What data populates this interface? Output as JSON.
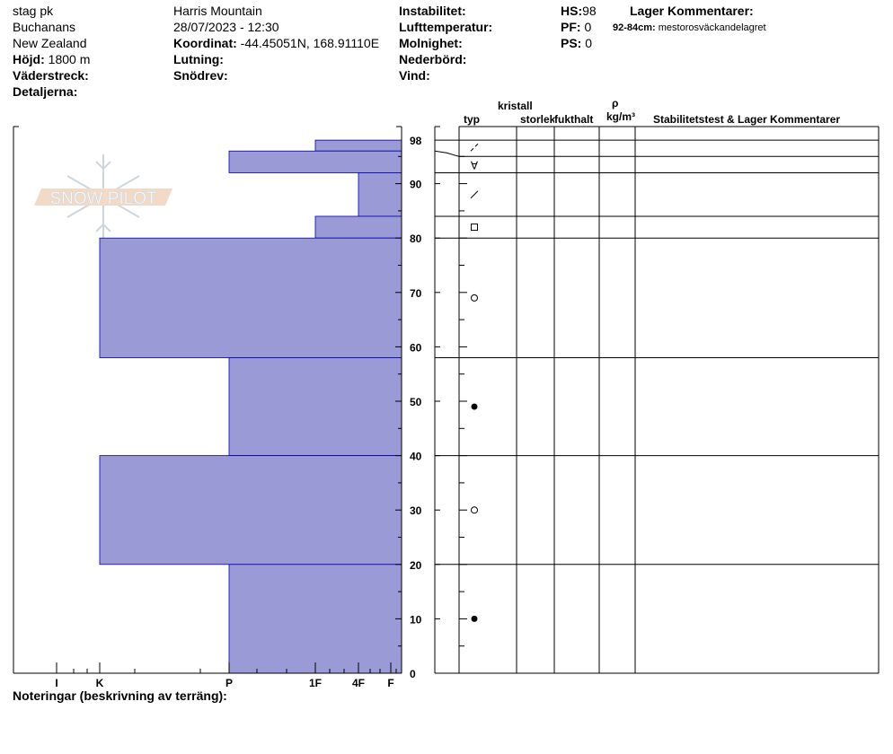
{
  "header": {
    "location": "stag pk",
    "area": "Buchanans",
    "country": "New Zealand",
    "elevation_label": "Höjd:",
    "elevation_value": "1800 m",
    "aspect_label": "Väderstreck:",
    "details_label": "Detaljerna:",
    "range": "Harris Mountain",
    "datetime": "28/07/2023 - 12:30",
    "coord_label": "Koordinat:",
    "coord_value": "-44.45051N, 168.91110E",
    "slope_label": "Lutning:",
    "drift_label": "Snödrev:",
    "instability_label": "Instabilitet:",
    "airtemp_label": "Lufttemperatur:",
    "sky_label": "Molnighet:",
    "precip_label": "Nederbörd:",
    "wind_label": "Vind:",
    "hs_label": "HS:",
    "hs_value": "98",
    "pf_label": "PF:",
    "pf_value": "0",
    "ps_label": "PS:",
    "ps_value": "0",
    "layer_comments_title": "Lager Kommentarer:",
    "layer_comment_range": "92-84cm:",
    "layer_comment_text": "mestorosväckandelagret"
  },
  "table_headers": {
    "crystal": "kristall",
    "type": "typ",
    "size": "storlek",
    "moisture": "fukthalt",
    "rho": "ρ",
    "density_unit": "kg/m³",
    "stability": "Stabilitetstest & Lager Kommentarer"
  },
  "footer": {
    "notes_label": "Noteringar (beskrivning av terräng):"
  },
  "logo": {
    "text": "SNOW PILOT"
  },
  "colors": {
    "bar_fill": "#9a9ad6",
    "bar_edge": "#0000aa",
    "logo_band": "#f0d6c0",
    "logo_flake": "#c8d2dc"
  },
  "chart_data": {
    "type": "bar",
    "orientation": "horizontal",
    "ylabel": "",
    "ylim": [
      0,
      98
    ],
    "y_ticks": [
      "98",
      "90",
      "80",
      "70",
      "60",
      "50",
      "40",
      "30",
      "20",
      "10",
      "0"
    ],
    "hardness_ticks": [
      "I",
      "K",
      "P",
      "1F",
      "4F",
      "F"
    ],
    "layers": [
      {
        "top": 98,
        "bottom": 96,
        "hardness": "1F"
      },
      {
        "top": 96,
        "bottom": 92,
        "hardness": "P"
      },
      {
        "top": 92,
        "bottom": 84,
        "hardness": "4F"
      },
      {
        "top": 84,
        "bottom": 80,
        "hardness": "1F"
      },
      {
        "top": 80,
        "bottom": 58,
        "hardness": "K"
      },
      {
        "top": 58,
        "bottom": 40,
        "hardness": "P"
      },
      {
        "top": 40,
        "bottom": 20,
        "hardness": "K"
      },
      {
        "top": 20,
        "bottom": 0,
        "hardness": "P"
      }
    ],
    "crystal_layers": [
      {
        "top": 98,
        "bottom": 95,
        "grain": "decomposing-fragments-icon"
      },
      {
        "top": 95,
        "bottom": 92,
        "grain": "depth-hoar-inverted-icon"
      },
      {
        "top": 92,
        "bottom": 84,
        "grain": "decomposing-fragments-single-icon"
      },
      {
        "top": 84,
        "bottom": 80,
        "grain": "faceted-square-icon"
      },
      {
        "top": 80,
        "bottom": 58,
        "grain": "rounded-circle-icon"
      },
      {
        "top": 58,
        "bottom": 40,
        "grain": "melt-form-dot-icon"
      },
      {
        "top": 40,
        "bottom": 20,
        "grain": "rounded-circle-icon"
      },
      {
        "top": 20,
        "bottom": 0,
        "grain": "melt-form-dot-icon"
      }
    ]
  }
}
